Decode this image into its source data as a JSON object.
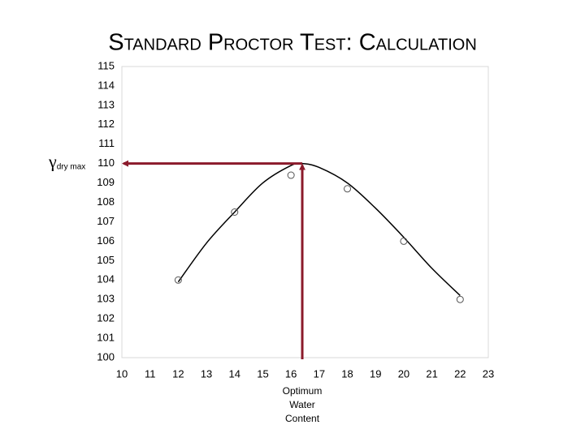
{
  "chart_data": {
    "type": "scatter",
    "title": "Standard Proctor Test: Calculation",
    "x": [
      12,
      14,
      16,
      18,
      20,
      22
    ],
    "values": [
      104,
      107.5,
      109.4,
      108.7,
      106,
      103
    ],
    "curve": {
      "x": [
        12,
        13,
        14,
        15,
        16,
        16.4,
        17,
        18,
        19,
        20,
        21,
        22
      ],
      "values": [
        103.9,
        105.9,
        107.5,
        109,
        109.9,
        110,
        109.8,
        109,
        107.7,
        106.2,
        104.6,
        103.2
      ]
    },
    "optimum": {
      "x": 16.4,
      "y": 110
    },
    "gamma_label": {
      "symbol": "γ",
      "subscript": "dry max"
    },
    "optimum_label": [
      "Optimum",
      "Water",
      "Content"
    ],
    "xlim": [
      10,
      23
    ],
    "xticks": [
      10,
      11,
      12,
      13,
      14,
      15,
      16,
      17,
      18,
      19,
      20,
      21,
      22,
      23
    ],
    "ylim": [
      100,
      115
    ],
    "yticks": [
      100,
      101,
      102,
      103,
      104,
      105,
      106,
      107,
      108,
      109,
      110,
      111,
      112,
      113,
      114,
      115
    ],
    "marker_color": "#555555",
    "curve_color": "#000000",
    "arrow_color": "#8b1a2b",
    "grid": false
  }
}
